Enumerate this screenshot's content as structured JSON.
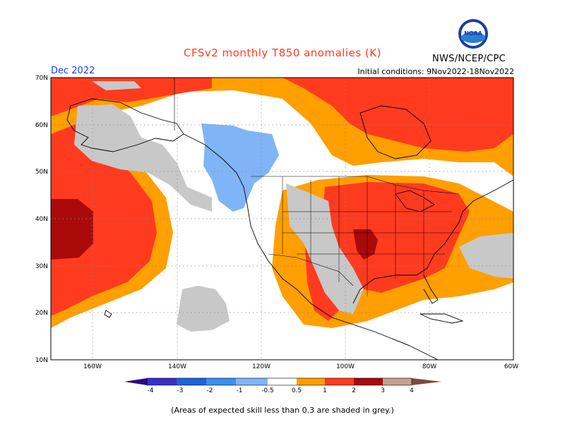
{
  "header": {
    "title": "CFSv2 monthly T850 anomalies (K)",
    "month": "Dec 2022",
    "initial_conditions": "Initial conditions: 9Nov2022-18Nov2022",
    "agency": "NWS/NCEP/CPC",
    "logo_text": "NOAA"
  },
  "map": {
    "projection": "equirectangular",
    "lon_range": [
      -170,
      -60
    ],
    "lat_range": [
      10,
      70
    ],
    "lat_labels": [
      "70N",
      "60N",
      "50N",
      "40N",
      "30N",
      "20N",
      "10N"
    ],
    "lon_labels": [
      "160W",
      "140W",
      "120W",
      "100W",
      "80W",
      "60W"
    ],
    "grid": true
  },
  "legend": {
    "tick_labels": [
      "-4",
      "-3",
      "-2",
      "-1",
      "-0.5",
      "0.5",
      "1",
      "2",
      "3",
      "4"
    ],
    "colors": {
      "lt_-4": "#2a0b83",
      "-4_-3": "#3b2fc9",
      "-3_-2": "#1e63d6",
      "-2_-1": "#3a8fee",
      "-1_-0.5": "#7fb4f6",
      "-0.5_0.5": "#ffffff",
      "0.5_1": "#ff9f00",
      "1_2": "#ff3b1f",
      "2_3": "#aa0a0a",
      "3_4": "#c8a090",
      "gt_4": "#7a4a3a",
      "low_skill": "#c8c8c8"
    }
  },
  "footnote": "(Areas of expected skill less than 0.3 are shaded in grey.)"
}
